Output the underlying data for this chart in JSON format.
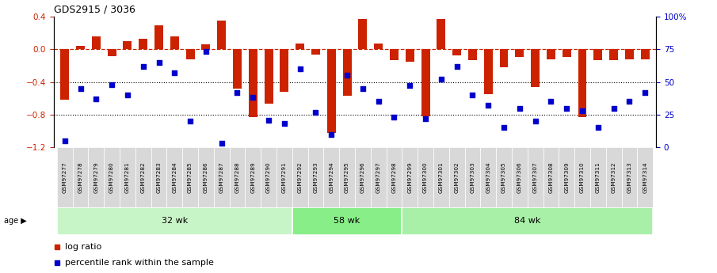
{
  "title": "GDS2915 / 3036",
  "samples": [
    "GSM97277",
    "GSM97278",
    "GSM97279",
    "GSM97280",
    "GSM97281",
    "GSM97282",
    "GSM97283",
    "GSM97284",
    "GSM97285",
    "GSM97286",
    "GSM97287",
    "GSM97288",
    "GSM97289",
    "GSM97290",
    "GSM97291",
    "GSM97292",
    "GSM97293",
    "GSM97294",
    "GSM97295",
    "GSM97296",
    "GSM97297",
    "GSM97298",
    "GSM97299",
    "GSM97300",
    "GSM97301",
    "GSM97302",
    "GSM97303",
    "GSM97304",
    "GSM97305",
    "GSM97306",
    "GSM97307",
    "GSM97308",
    "GSM97309",
    "GSM97310",
    "GSM97311",
    "GSM97312",
    "GSM97313",
    "GSM97314"
  ],
  "log_ratio": [
    -0.62,
    0.04,
    0.16,
    -0.09,
    0.1,
    0.13,
    0.29,
    0.16,
    -0.12,
    0.06,
    0.35,
    -0.48,
    -0.83,
    -0.67,
    -0.52,
    0.07,
    -0.07,
    -1.02,
    -0.57,
    0.37,
    0.07,
    -0.13,
    -0.15,
    -0.82,
    0.37,
    -0.08,
    -0.13,
    -0.55,
    -0.22,
    -0.1,
    -0.46,
    -0.12,
    -0.1,
    -0.83,
    -0.13,
    -0.13,
    -0.12,
    -0.12
  ],
  "percentile": [
    5,
    45,
    37,
    48,
    40,
    62,
    65,
    57,
    20,
    73,
    3,
    42,
    38,
    21,
    18,
    60,
    27,
    10,
    55,
    45,
    35,
    23,
    47,
    22,
    52,
    62,
    40,
    32,
    15,
    30,
    20,
    35,
    30,
    28,
    15,
    30,
    35,
    42
  ],
  "age_groups": [
    {
      "label": "32 wk",
      "start": 0,
      "end": 15,
      "color": "#c8f5c8"
    },
    {
      "label": "58 wk",
      "start": 15,
      "end": 22,
      "color": "#88ee88"
    },
    {
      "label": "84 wk",
      "start": 22,
      "end": 38,
      "color": "#a8f0a8"
    }
  ],
  "ylim_left": [
    -1.2,
    0.4
  ],
  "yticks_left": [
    -1.2,
    -0.8,
    -0.4,
    0.0,
    0.4
  ],
  "yticks_right_pct": [
    0,
    25,
    50,
    75,
    100
  ],
  "yticks_right_labels": [
    "0",
    "25",
    "50",
    "75",
    "100%"
  ],
  "bar_color": "#cc2200",
  "dot_color": "#0000cc",
  "sample_box_color": "#d8d8d8",
  "bg_color": "#ffffff"
}
